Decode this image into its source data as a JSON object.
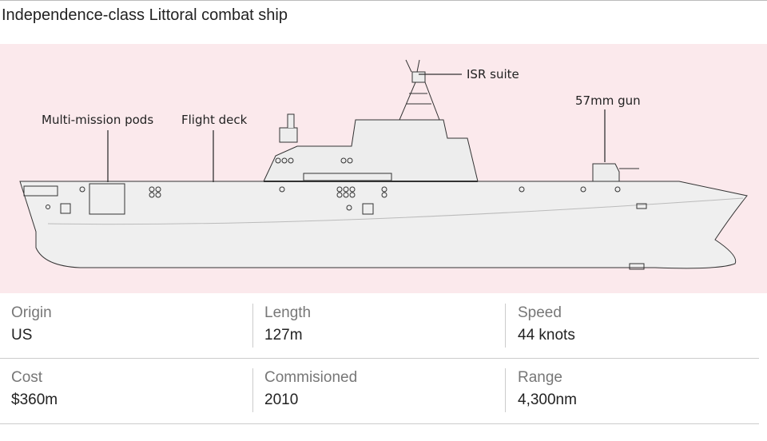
{
  "title": "Independence-class Littoral combat ship",
  "labels": [
    "Multi-mission pods",
    "Flight deck",
    "ISR suite",
    "57mm gun"
  ],
  "stats": [
    {
      "label": "Origin",
      "value": "US"
    },
    {
      "label": "Length",
      "value": "127m"
    },
    {
      "label": "Speed",
      "value": "44 knots"
    },
    {
      "label": "Cost",
      "value": "$360m"
    },
    {
      "label": "Commisioned",
      "value": "2010"
    },
    {
      "label": "Range",
      "value": "4,300nm"
    }
  ]
}
